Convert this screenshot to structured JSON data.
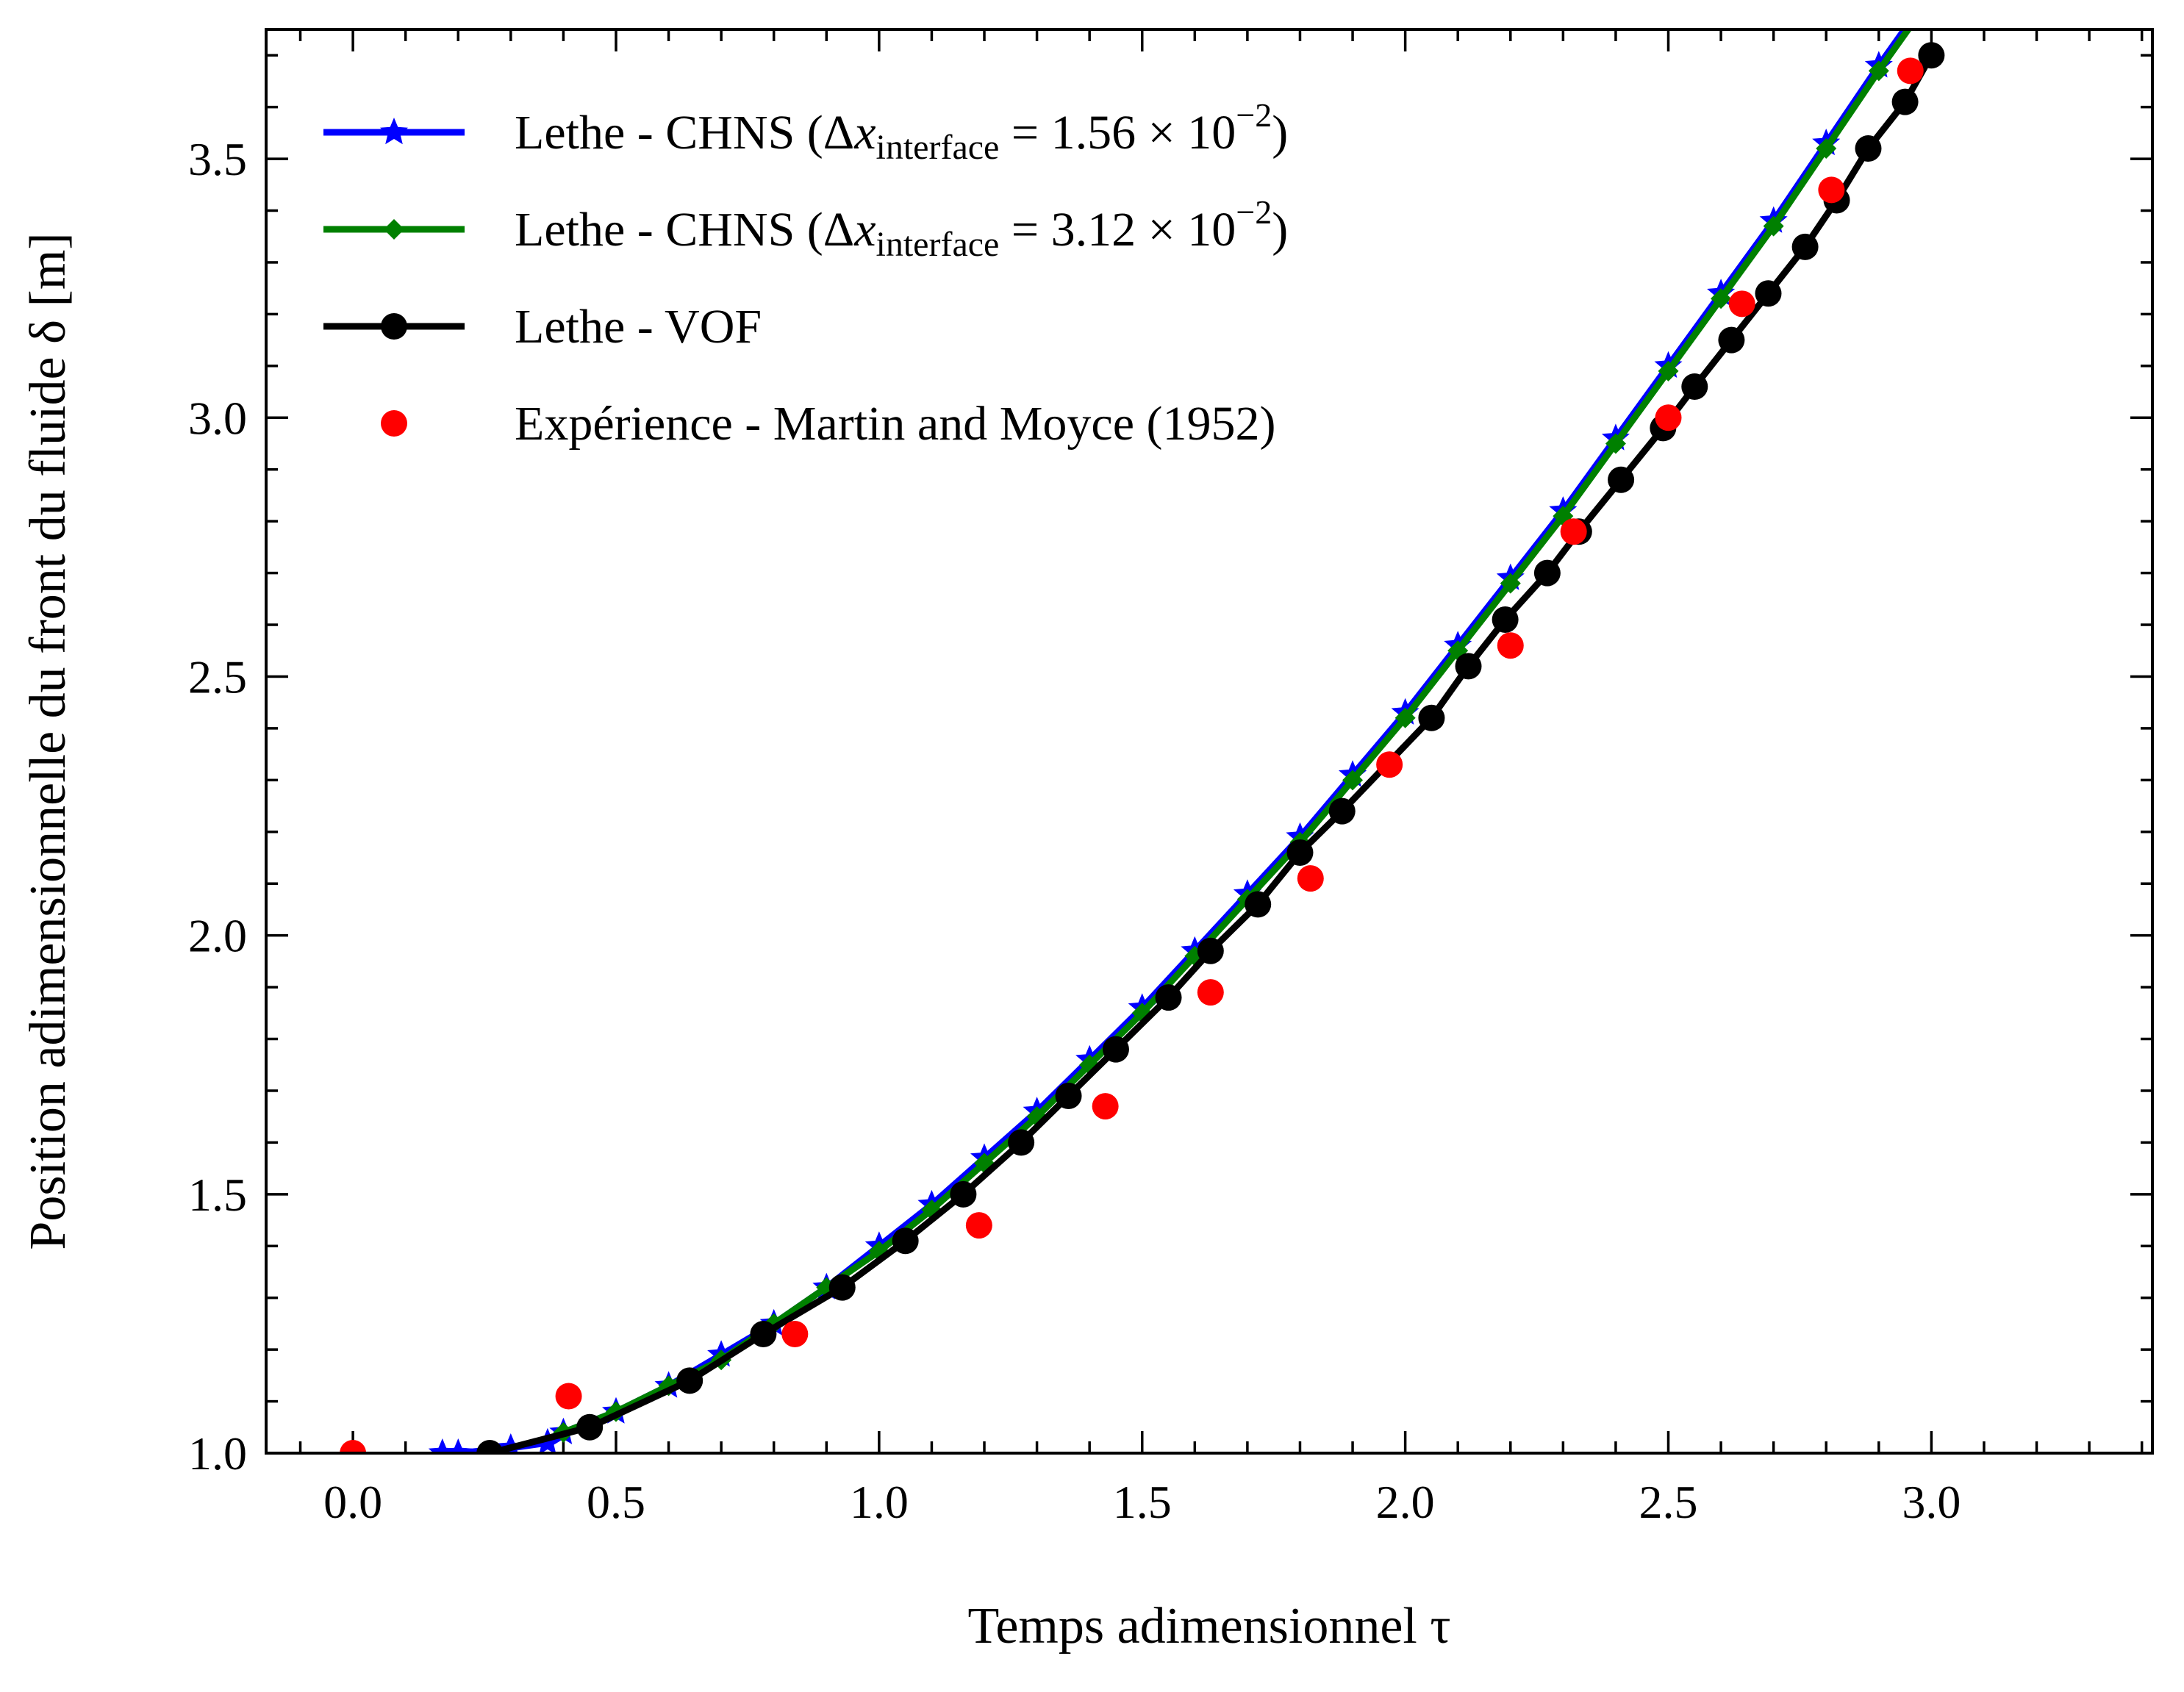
{
  "chart_data": {
    "type": "line",
    "xlabel": "Temps adimensionnel τ",
    "ylabel": "Position adimensionnelle du front du fluide δ [m]",
    "xlim": [
      -0.165,
      3.42
    ],
    "ylim": [
      1.0,
      3.75
    ],
    "xticks": [
      0.0,
      0.5,
      1.0,
      1.5,
      2.0,
      2.5,
      3.0
    ],
    "xtick_labels": [
      "0.0",
      "0.5",
      "1.0",
      "1.5",
      "2.0",
      "2.5",
      "3.0"
    ],
    "yticks": [
      1.0,
      1.5,
      2.0,
      2.5,
      3.0,
      3.5
    ],
    "ytick_labels": [
      "1.0",
      "1.5",
      "2.0",
      "2.5",
      "3.0",
      "3.5"
    ],
    "grid": false,
    "legend_position": "top-left",
    "series": [
      {
        "name": "Lethe - CHNS (Δx_interface = 1.56 × 10^−2)",
        "legend_parts": {
          "prefix": "Lethe - CHNS (Δ",
          "var": "x",
          "sub": "interface",
          "mid": " = 1.56 × 10",
          "sup": "−2",
          "suffix": ")"
        },
        "color": "#0000ff",
        "marker": "star",
        "x": [
          0.17,
          0.2,
          0.3,
          0.37,
          0.4,
          0.5,
          0.6,
          0.7,
          0.8,
          0.9,
          1.0,
          1.1,
          1.2,
          1.3,
          1.4,
          1.5,
          1.6,
          1.7,
          1.8,
          1.9,
          2.0,
          2.1,
          2.2,
          2.3,
          2.4,
          2.5,
          2.6,
          2.7,
          2.8,
          2.9,
          2.97
        ],
        "y": [
          1.0,
          1.0,
          1.01,
          1.02,
          1.04,
          1.08,
          1.13,
          1.19,
          1.25,
          1.32,
          1.4,
          1.48,
          1.57,
          1.66,
          1.76,
          1.86,
          1.97,
          2.08,
          2.19,
          2.31,
          2.43,
          2.56,
          2.69,
          2.82,
          2.96,
          3.1,
          3.24,
          3.38,
          3.53,
          3.68,
          3.78
        ]
      },
      {
        "name": "Lethe - CHNS (Δx_interface = 3.12 × 10^−2)",
        "legend_parts": {
          "prefix": "Lethe - CHNS (Δ",
          "var": "x",
          "sub": "interface",
          "mid": " = 3.12 × 10",
          "sup": "−2",
          "suffix": ")"
        },
        "color": "#008000",
        "marker": "diamond",
        "x": [
          0.4,
          0.5,
          0.6,
          0.7,
          0.8,
          0.9,
          1.0,
          1.1,
          1.2,
          1.3,
          1.4,
          1.5,
          1.6,
          1.7,
          1.8,
          1.9,
          2.0,
          2.1,
          2.2,
          2.3,
          2.4,
          2.5,
          2.6,
          2.7,
          2.8,
          2.9,
          2.97
        ],
        "y": [
          1.04,
          1.08,
          1.13,
          1.18,
          1.25,
          1.32,
          1.39,
          1.47,
          1.56,
          1.65,
          1.75,
          1.85,
          1.96,
          2.07,
          2.18,
          2.3,
          2.42,
          2.55,
          2.68,
          2.81,
          2.95,
          3.09,
          3.23,
          3.37,
          3.52,
          3.67,
          3.77
        ]
      },
      {
        "name": "Lethe - VOF",
        "color": "#000000",
        "marker": "circle",
        "x": [
          0.26,
          0.45,
          0.64,
          0.78,
          0.93,
          1.05,
          1.16,
          1.27,
          1.36,
          1.45,
          1.55,
          1.63,
          1.72,
          1.8,
          1.88,
          2.05,
          2.12,
          2.19,
          2.27,
          2.33,
          2.41,
          2.49,
          2.55,
          2.62,
          2.69,
          2.76,
          2.82,
          2.88,
          2.95,
          3.0
        ],
        "y": [
          1.0,
          1.05,
          1.14,
          1.23,
          1.32,
          1.41,
          1.5,
          1.6,
          1.69,
          1.78,
          1.88,
          1.97,
          2.06,
          2.16,
          2.24,
          2.42,
          2.52,
          2.61,
          2.7,
          2.78,
          2.88,
          2.98,
          3.06,
          3.15,
          3.24,
          3.33,
          3.42,
          3.52,
          3.61,
          3.7
        ]
      },
      {
        "name": "Expérience - Martin and Moyce (1952)",
        "color": "#ff0000",
        "marker": "circle",
        "line": false,
        "x": [
          0.0,
          0.41,
          0.84,
          1.19,
          1.43,
          1.63,
          1.82,
          1.97,
          2.2,
          2.32,
          2.5,
          2.64,
          2.81,
          2.96
        ],
        "y": [
          1.0,
          1.11,
          1.23,
          1.44,
          1.67,
          1.89,
          2.11,
          2.33,
          2.56,
          2.78,
          3.0,
          3.22,
          3.44,
          3.67
        ]
      }
    ]
  }
}
